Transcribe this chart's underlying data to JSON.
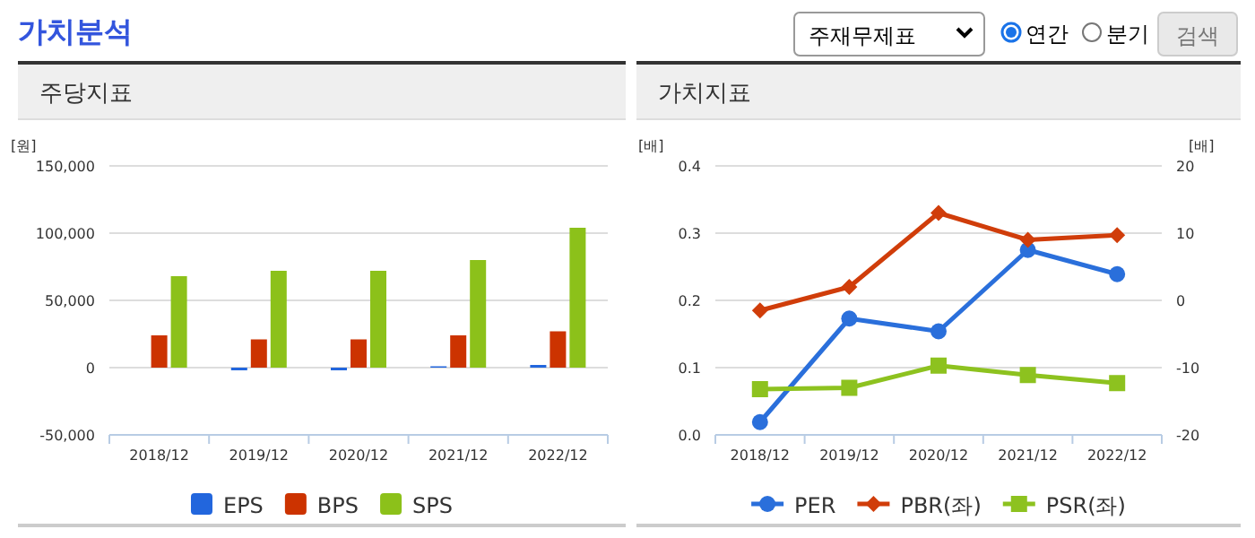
{
  "chart_data": [
    {
      "type": "other",
      "title": "가치분석",
      "annotations": [
        "주재무제표",
        "연간",
        "분기",
        "검색"
      ]
    },
    {
      "type": "bar",
      "title": "주당지표",
      "ylabel": "[원]",
      "categories": [
        "2018/12",
        "2019/12",
        "2020/12",
        "2021/12",
        "2022/12"
      ],
      "series": [
        {
          "name": "EPS",
          "color": "#2266dd",
          "values": [
            null,
            -2000,
            -2000,
            1000,
            2000
          ]
        },
        {
          "name": "BPS",
          "color": "#cc3300",
          "values": [
            24000,
            21000,
            21000,
            24000,
            27000
          ]
        },
        {
          "name": "SPS",
          "color": "#8cc11a",
          "values": [
            68000,
            72000,
            72000,
            80000,
            104000
          ]
        }
      ],
      "ylim": [
        -50000,
        150000
      ],
      "yticks": [
        {
          "value": -50000,
          "label": "-50,000"
        },
        0,
        {
          "value": 50000,
          "label": "50,000"
        },
        {
          "value": 100000,
          "label": "100,000"
        },
        {
          "value": 150000,
          "label": "150,000"
        }
      ],
      "grid": "y",
      "legend": "bottom"
    },
    {
      "type": "line",
      "title": "가치지표",
      "ylabel": "[배]",
      "y2label": "[배]",
      "categories": [
        "2018/12",
        "2019/12",
        "2020/12",
        "2021/12",
        "2022/12"
      ],
      "series": [
        {
          "name": "PER",
          "color": "#2a6fdb",
          "axis": "y2",
          "marker": "circle",
          "values": [
            -18.1,
            -2.7,
            -4.6,
            7.5,
            3.9
          ]
        },
        {
          "name": "PBR(좌)",
          "color": "#d03d0a",
          "marker": "diamond",
          "values": [
            0.185,
            0.22,
            0.33,
            0.29,
            0.297
          ]
        },
        {
          "name": "PSR(좌)",
          "color": "#8dc21f",
          "marker": "square",
          "values": [
            0.068,
            0.07,
            0.103,
            0.089,
            0.077
          ]
        }
      ],
      "ylim": [
        0,
        0.4
      ],
      "yticks": [
        {
          "value": 0,
          "label": "0.0"
        },
        0.1,
        0.2,
        0.3,
        0.4
      ],
      "y2lim": [
        -20,
        20
      ],
      "y2ticks": [
        -20,
        -10,
        0,
        10,
        20
      ],
      "grid": "y",
      "legend": "bottom"
    }
  ]
}
